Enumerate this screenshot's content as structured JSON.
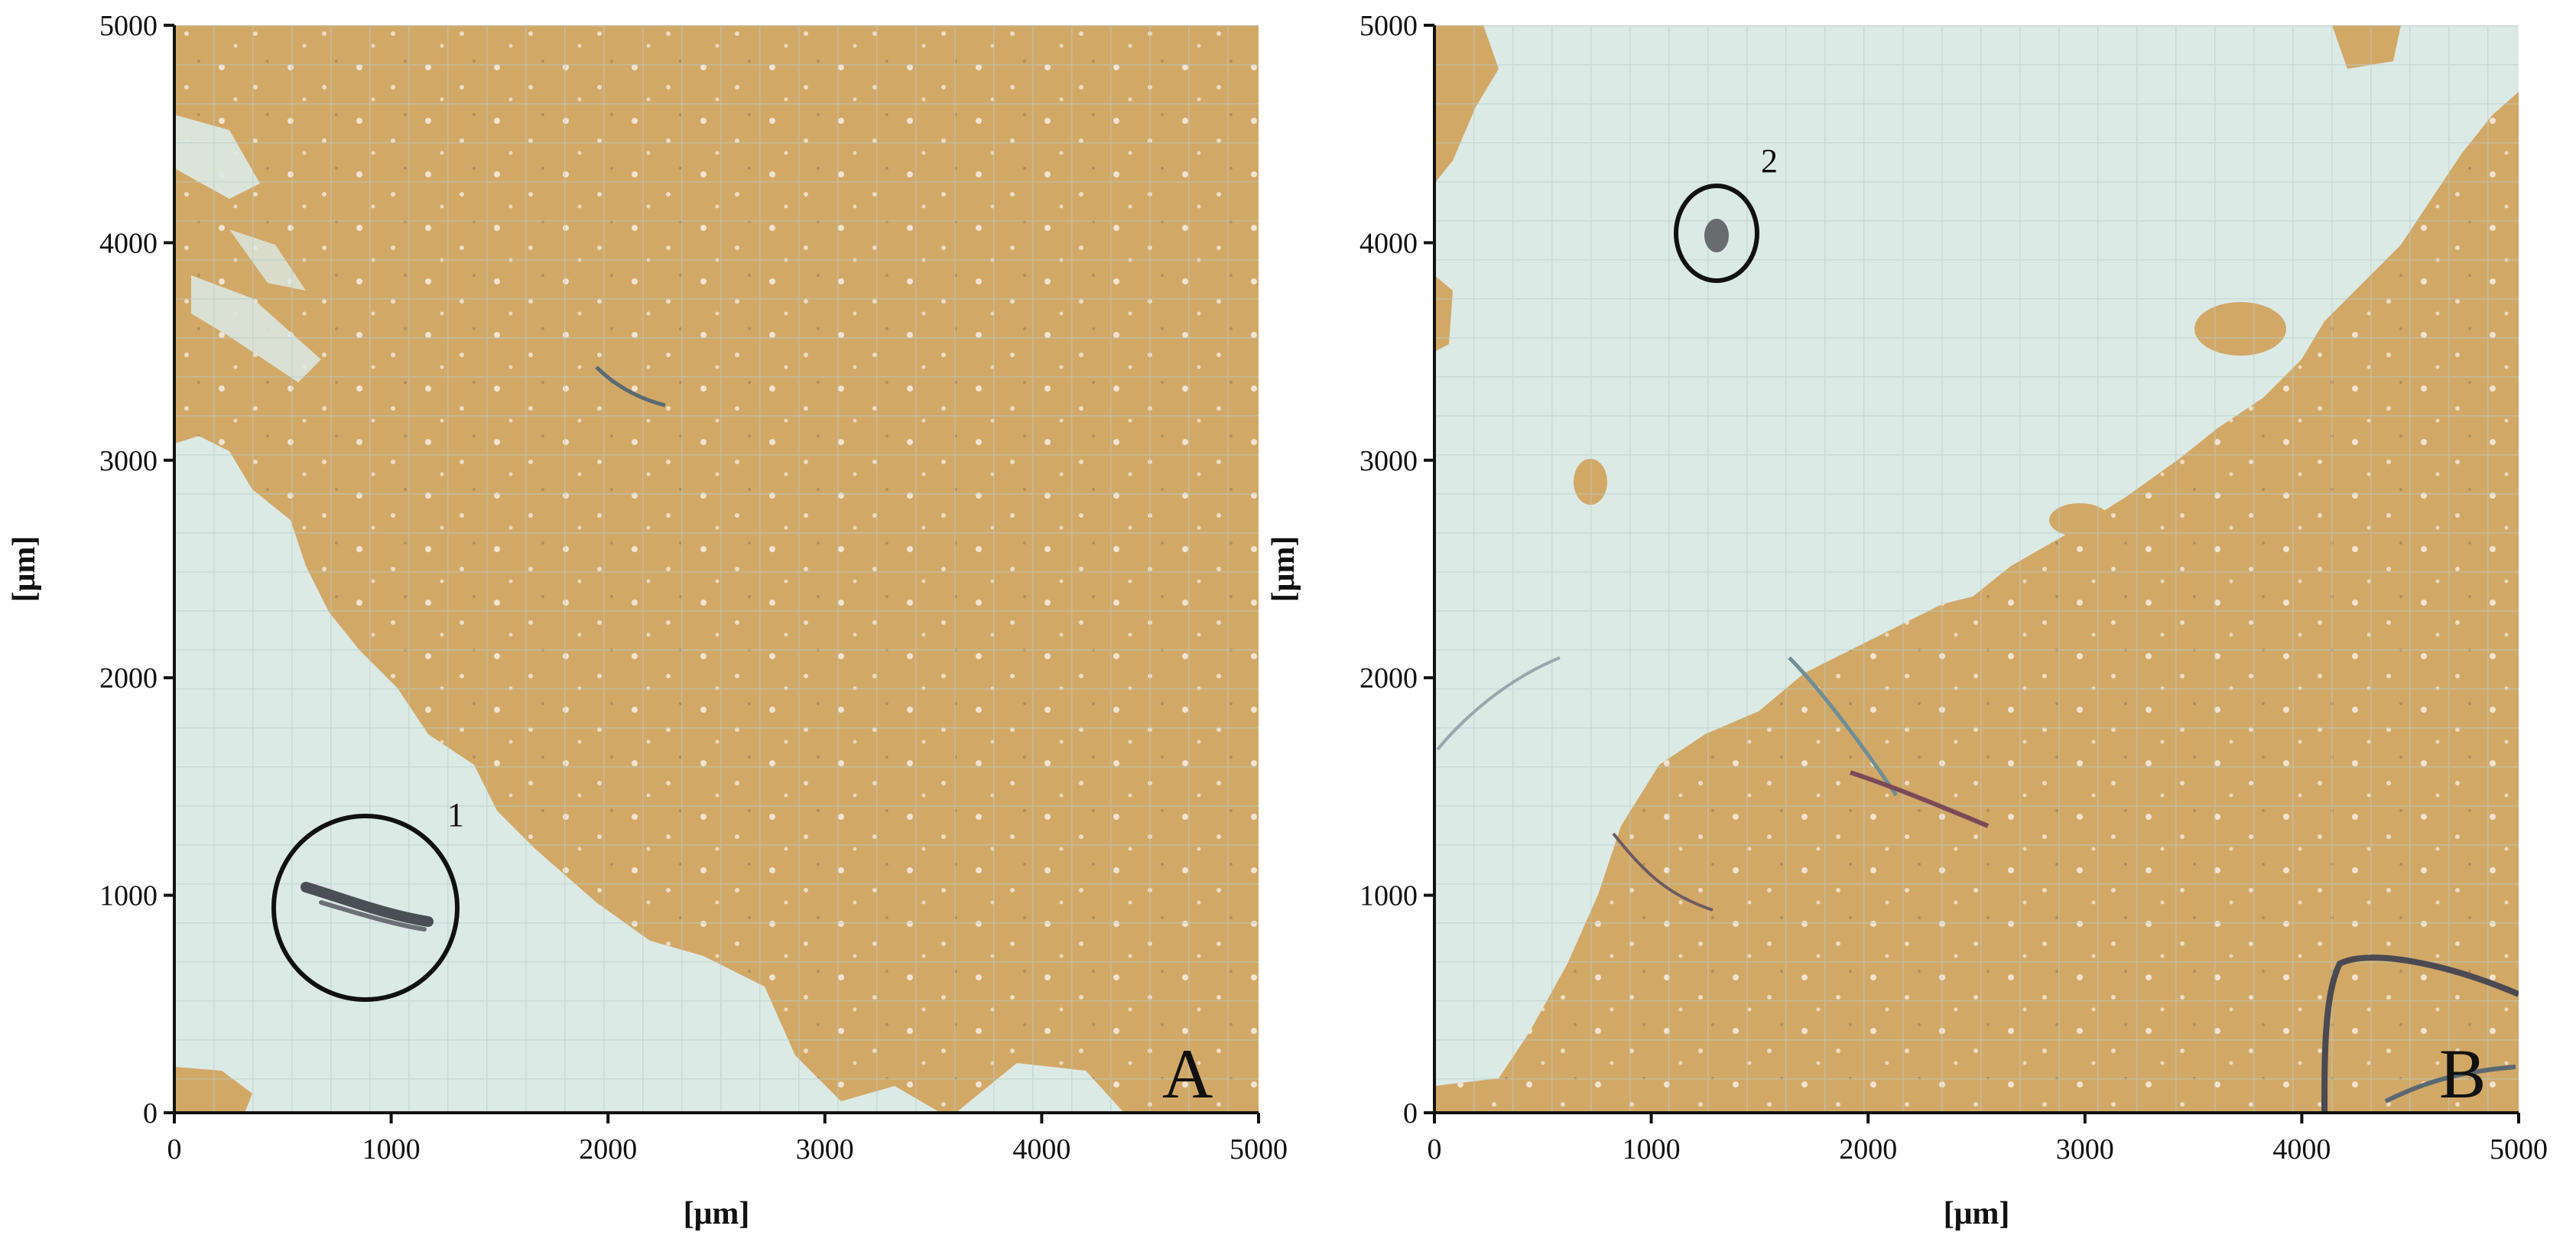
{
  "panels": [
    {
      "id": "A",
      "letter": "A",
      "x_label": "[μm]",
      "y_label": "[μm]",
      "x_ticks": [
        "0",
        "1000",
        "2000",
        "3000",
        "4000",
        "5000"
      ],
      "y_ticks": [
        "0",
        "1000",
        "2000",
        "3000",
        "4000",
        "5000"
      ],
      "annotation": {
        "label": "1"
      }
    },
    {
      "id": "B",
      "letter": "B",
      "x_label": "[μm]",
      "y_label": "[μm]",
      "x_ticks": [
        "0",
        "1000",
        "2000",
        "3000",
        "4000",
        "5000"
      ],
      "y_ticks": [
        "0",
        "1000",
        "2000",
        "3000",
        "4000",
        "5000"
      ],
      "annotation": {
        "label": "2"
      }
    }
  ],
  "colors": {
    "particles": "#D2A867",
    "substrate": "#DCEAE6",
    "grid": "#B8CBC6",
    "axis": "#111111"
  }
}
